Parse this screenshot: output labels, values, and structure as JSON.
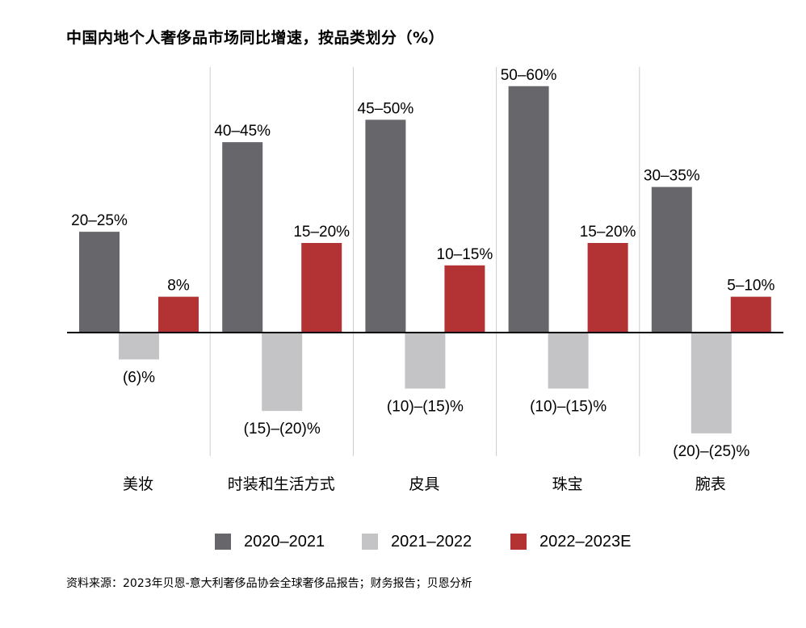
{
  "title": "中国内地个人奢侈品市场同比增速，按品类划分（%）",
  "source": "资料来源：2023年贝恩-意大利奢侈品协会全球奢侈品报告；财务报告；贝恩分析",
  "colors": {
    "series1": "#67676b",
    "series2": "#c4c4c6",
    "series3": "#b33334",
    "axis": "#000000",
    "divider": "#cccccc"
  },
  "chart_data": {
    "type": "bar",
    "title": "中国内地个人奢侈品市场同比增速，按品类划分（%）",
    "categories": [
      "美妆",
      "时装和生活方式",
      "皮具",
      "珠宝",
      "腕表"
    ],
    "ylim": [
      -25,
      60
    ],
    "grid": false,
    "legend_position": "bottom",
    "series": [
      {
        "name": "2020–2021",
        "values": [
          22.5,
          42.5,
          47.5,
          55,
          32.5
        ],
        "labels": [
          "20–25%",
          "40–45%",
          "45–50%",
          "50–60%",
          "30–35%"
        ]
      },
      {
        "name": "2021–2022",
        "values": [
          -6,
          -17.5,
          -12.5,
          -12.5,
          -22.5
        ],
        "labels": [
          "(6)%",
          "(15)–(20)%",
          "(10)–(15)%",
          "(10)–(15)%",
          "(20)–(25)%"
        ]
      },
      {
        "name": "2022–2023E",
        "values": [
          8,
          20,
          15,
          20,
          8
        ],
        "labels": [
          "8%",
          "15–20%",
          "10–15%",
          "15–20%",
          "5–10%"
        ]
      }
    ]
  }
}
